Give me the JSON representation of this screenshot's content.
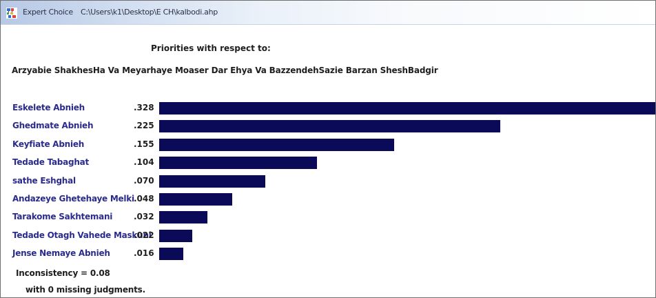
{
  "window": {
    "app_name": "Expert Choice",
    "file_path": "C:\\Users\\k1\\Desktop\\E CH\\kalbodi.ahp"
  },
  "heading": {
    "line1": "Priorities with respect to:",
    "line2": "Arzyabie ShakhesHa Va Meyarhaye Moaser Dar Ehya Va BazzendehSazie Barzan SheshBadgir"
  },
  "chart_data": {
    "type": "bar",
    "categories": [
      "Eskelete Abnieh",
      "Ghedmate Abnieh",
      "Keyfiate Abnieh",
      "Tedade Tabaghat",
      "sathe Eshghal",
      "Andazeye Ghetehaye Melki",
      "Tarakome Sakhtemani",
      "Tedade Otagh Vahede Maskuni",
      "Jense Nemaye Abnieh"
    ],
    "values": [
      0.328,
      0.225,
      0.155,
      0.104,
      0.07,
      0.048,
      0.032,
      0.022,
      0.016
    ],
    "value_labels": [
      ".328",
      ".225",
      ".155",
      ".104",
      ".070",
      ".048",
      ".032",
      ".022",
      ".016"
    ],
    "title": "",
    "xlabel": "",
    "ylabel": "",
    "bar_color": "#0a0a58",
    "label_color": "#2b2b8e"
  },
  "footer": {
    "inconsistency": "Inconsistency = 0.08",
    "missing": "with 0  missing judgments."
  }
}
